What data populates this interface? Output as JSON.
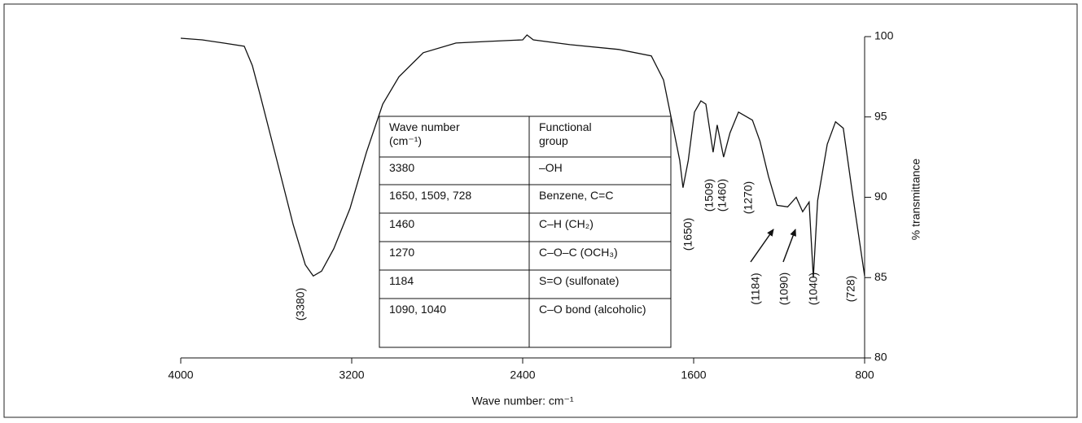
{
  "chart_data": {
    "type": "line",
    "xlabel": "Wave number: cm⁻¹",
    "ylabel": "% transmittance",
    "x": [
      4000,
      3900,
      3800,
      3703,
      3665,
      3627,
      3550,
      3474,
      3417,
      3380,
      3341,
      3284,
      3208,
      3131,
      3055,
      2979,
      2865,
      2712,
      2560,
      2400,
      2380,
      2350,
      2179,
      1950,
      1798,
      1741,
      1703,
      1665,
      1650,
      1625,
      1596,
      1566,
      1543,
      1509,
      1490,
      1460,
      1430,
      1390,
      1325,
      1290,
      1250,
      1210,
      1160,
      1120,
      1090,
      1060,
      1040,
      1020,
      975,
      936,
      900,
      860,
      800
    ],
    "values": [
      99.9,
      99.8,
      99.6,
      99.4,
      98.2,
      96.3,
      92.3,
      88.3,
      85.8,
      85.1,
      85.4,
      86.8,
      89.3,
      92.8,
      95.8,
      97.5,
      99.0,
      99.6,
      99.7,
      99.8,
      100.1,
      99.8,
      99.5,
      99.2,
      98.8,
      97.3,
      94.8,
      92.3,
      90.6,
      92.3,
      95.3,
      96.0,
      95.8,
      92.8,
      94.5,
      92.5,
      94.0,
      95.3,
      94.8,
      93.5,
      91.3,
      89.5,
      89.4,
      90.0,
      89.1,
      89.7,
      85.0,
      89.8,
      93.3,
      94.7,
      94.3,
      90.5,
      85.1
    ],
    "color": "#111111",
    "xlim": [
      4000,
      800
    ],
    "xticks": [
      4000,
      3200,
      2400,
      1600,
      800
    ],
    "ylim": [
      80,
      100
    ],
    "yticks": [
      80,
      85,
      90,
      95,
      100
    ],
    "annotations": [
      "(3380)",
      "(1650)",
      "(1509)",
      "(1460)",
      "(1270)",
      "(1184)",
      "(1090)",
      "(1040)",
      "(728)"
    ]
  },
  "table": {
    "header": [
      "Wave number (cm⁻¹)",
      "Functional group"
    ],
    "rows": [
      [
        "3380",
        "–OH"
      ],
      [
        "1650, 1509, 728",
        "Benzene, C=C"
      ],
      [
        "1460",
        "C–H (CH₂)"
      ],
      [
        "1270",
        "C–O–C (OCH₃)"
      ],
      [
        "1184",
        "S=O (sulfonate)"
      ],
      [
        "1090, 1040",
        "C–O bond (alcoholic)"
      ]
    ]
  }
}
